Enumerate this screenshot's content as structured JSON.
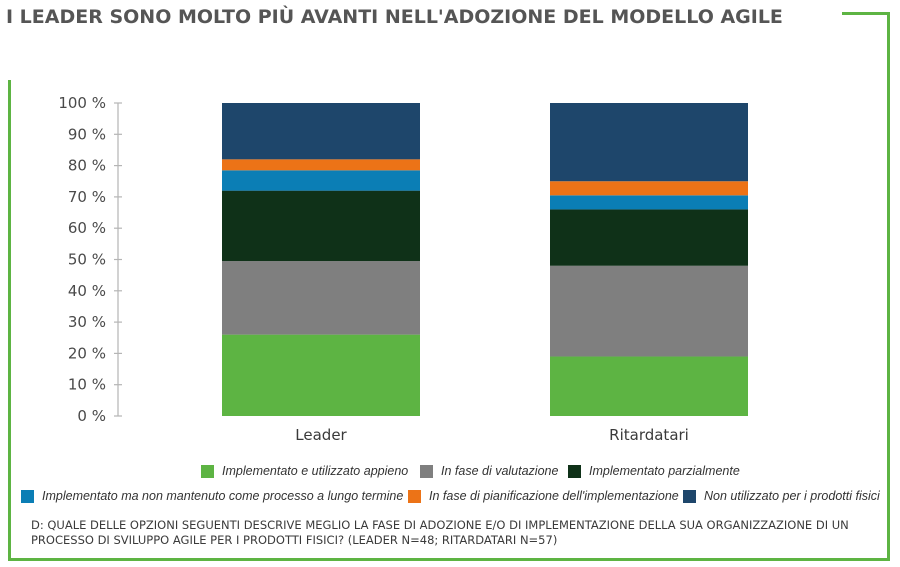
{
  "title": "I LEADER SONO MOLTO PIÙ AVANTI NELL'ADOZIONE DEL MODELLO AGILE",
  "chart_data": {
    "type": "bar",
    "stacked": true,
    "categories": [
      "Leader",
      "Ritardatari"
    ],
    "ylim": [
      0,
      100
    ],
    "yticks": [
      0,
      10,
      20,
      30,
      40,
      50,
      60,
      70,
      80,
      90,
      100
    ],
    "ytick_suffix": " %",
    "series": [
      {
        "name": "Implementato e utilizzato appieno",
        "color": "#5db443",
        "values": [
          26,
          19
        ]
      },
      {
        "name": "In fase di valutazione",
        "color": "#7f7f7f",
        "values": [
          23.5,
          29
        ]
      },
      {
        "name": "Implementato parzialmente",
        "color": "#0f3118",
        "values": [
          22.5,
          18
        ]
      },
      {
        "name": "Implementato ma non mantenuto come processo a lungo termine",
        "color": "#0b7eb5",
        "values": [
          6.5,
          4.5
        ]
      },
      {
        "name": "In fase di pianificazione dell'implementazione",
        "color": "#ec7317",
        "values": [
          3.5,
          4.5
        ]
      },
      {
        "name": "Non utilizzato per i prodotti fisici",
        "color": "#1e466b",
        "values": [
          18,
          25
        ]
      }
    ],
    "legend_position": "bottom"
  },
  "footnote": "D: QUALE DELLE OPZIONI SEGUENTI DESCRIVE MEGLIO LA FASE DI ADOZIONE E/O DI IMPLEMENTAZIONE DELLA SUA ORGANIZZAZIONE DI UN PROCESSO DI SVILUPPO AGILE PER I PRODOTTI FISICI? (LEADER N=48; RITARDATARI N=57)"
}
